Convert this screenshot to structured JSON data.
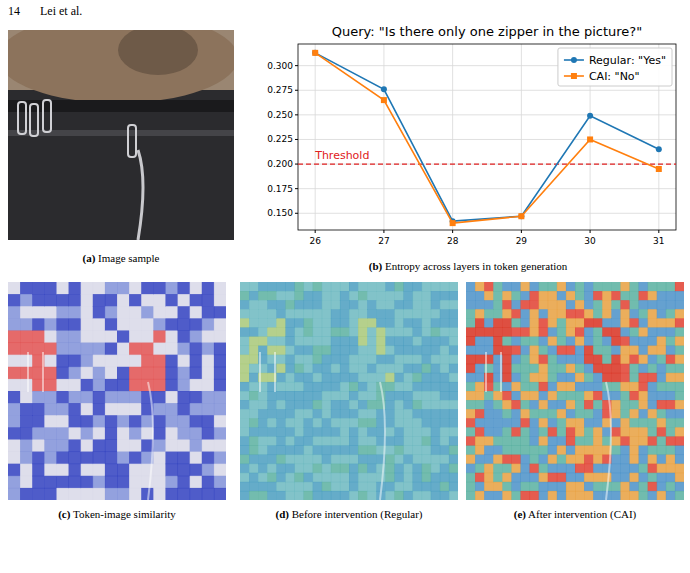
{
  "header": {
    "page_number": "14",
    "authors": "Lei et al."
  },
  "panels": [
    {
      "label": "(a)",
      "caption": "Image sample"
    },
    {
      "label": "(b)",
      "caption": "Entropy across layers in token generation"
    },
    {
      "label": "(c)",
      "caption": "Token-image similarity"
    },
    {
      "label": "(d)",
      "caption": "Before intervention (Regular)"
    },
    {
      "label": "(e)",
      "caption": "After intervention (CAI)"
    }
  ],
  "chart_data": {
    "type": "line",
    "title": "Query: \"Is there only one zipper in the picture?\"",
    "x": [
      26,
      27,
      28,
      29,
      30,
      31
    ],
    "series": [
      {
        "name": "Regular: \"Yes\"",
        "color": "#1f77b4",
        "marker": "circle",
        "values": [
          0.313,
          0.276,
          0.142,
          0.147,
          0.249,
          0.215
        ]
      },
      {
        "name": "CAI: \"No\"",
        "color": "#ff7f0e",
        "marker": "square",
        "values": [
          0.313,
          0.265,
          0.14,
          0.147,
          0.225,
          0.195
        ]
      }
    ],
    "xlim": [
      25.75,
      31.25
    ],
    "xticks": [
      26,
      27,
      28,
      29,
      30,
      31
    ],
    "ylim": [
      0.133,
      0.322
    ],
    "yticks": [
      {
        "value": 0.15,
        "label": "0.150"
      },
      0.175,
      {
        "value": 0.2,
        "label": "0.200"
      },
      0.225,
      {
        "value": 0.25,
        "label": "0.250"
      },
      0.275,
      {
        "value": 0.3,
        "label": "0.300"
      }
    ],
    "annotations": [
      {
        "text": "Threshold",
        "y": 0.2,
        "color": "#e02020",
        "line_style": "dashed"
      }
    ],
    "grid": true,
    "legend": "upper right"
  }
}
